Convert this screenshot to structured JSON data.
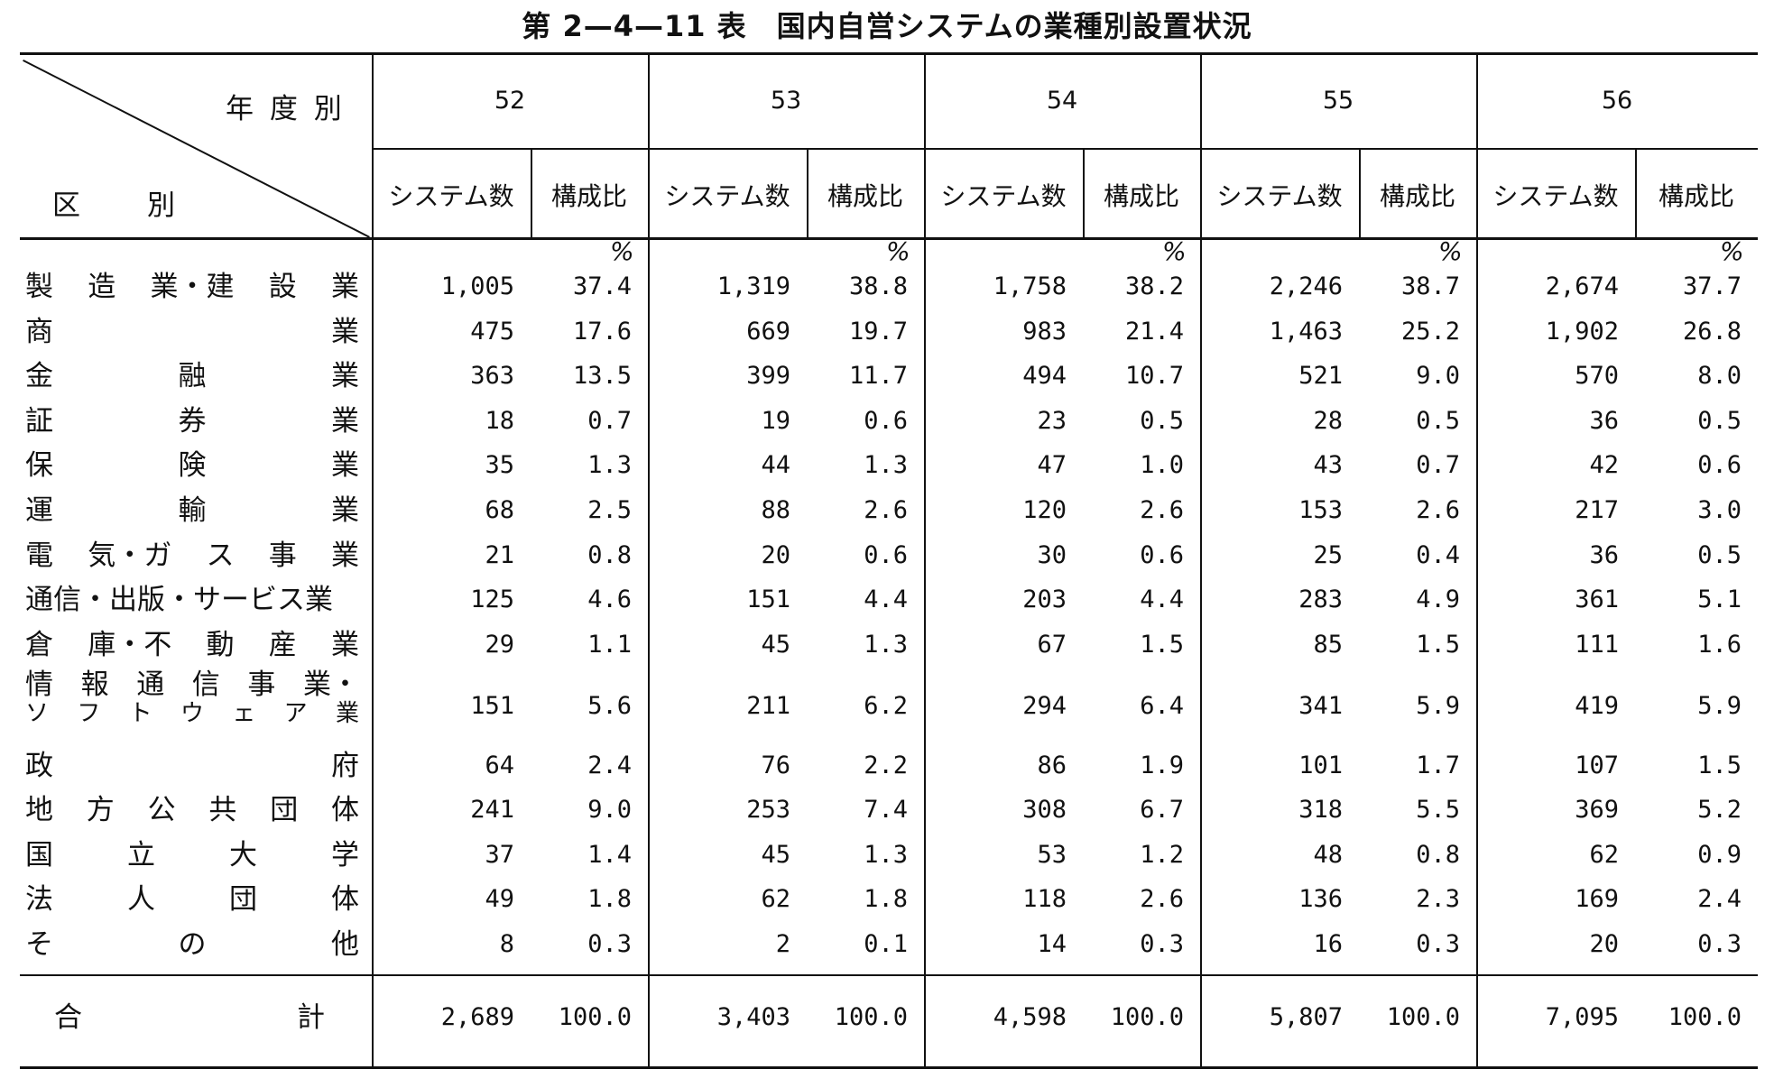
{
  "title": "第 2—4—11 表　国内自営システムの業種別設置状況",
  "header": {
    "corner_top": "年 度 別",
    "corner_bottom": "区　　別",
    "years": [
      "52",
      "53",
      "54",
      "55",
      "56"
    ],
    "col_count": "システム数",
    "col_ratio": "構成比",
    "percent_sign": "%"
  },
  "rows": [
    {
      "label": "製造業・建設業",
      "chars": [
        "製",
        "造",
        "業・建",
        "設",
        "業"
      ],
      "values": [
        "1,005",
        "37.4",
        "1,319",
        "38.8",
        "1,758",
        "38.2",
        "2,246",
        "38.7",
        "2,674",
        "37.7"
      ]
    },
    {
      "label": "商業",
      "chars": [
        "商",
        "業"
      ],
      "values": [
        "475",
        "17.6",
        "669",
        "19.7",
        "983",
        "21.4",
        "1,463",
        "25.2",
        "1,902",
        "26.8"
      ]
    },
    {
      "label": "金融業",
      "chars": [
        "金",
        "融",
        "業"
      ],
      "values": [
        "363",
        "13.5",
        "399",
        "11.7",
        "494",
        "10.7",
        "521",
        "9.0",
        "570",
        "8.0"
      ]
    },
    {
      "label": "証券業",
      "chars": [
        "証",
        "券",
        "業"
      ],
      "values": [
        "18",
        "0.7",
        "19",
        "0.6",
        "23",
        "0.5",
        "28",
        "0.5",
        "36",
        "0.5"
      ]
    },
    {
      "label": "保険業",
      "chars": [
        "保",
        "険",
        "業"
      ],
      "values": [
        "35",
        "1.3",
        "44",
        "1.3",
        "47",
        "1.0",
        "43",
        "0.7",
        "42",
        "0.6"
      ]
    },
    {
      "label": "運輸業",
      "chars": [
        "運",
        "輸",
        "業"
      ],
      "values": [
        "68",
        "2.5",
        "88",
        "2.6",
        "120",
        "2.6",
        "153",
        "2.6",
        "217",
        "3.0"
      ]
    },
    {
      "label": "電気・ガス事業",
      "chars": [
        "電",
        "気・ガ",
        "ス",
        "事",
        "業"
      ],
      "values": [
        "21",
        "0.8",
        "20",
        "0.6",
        "30",
        "0.6",
        "25",
        "0.4",
        "36",
        "0.5"
      ]
    },
    {
      "label": "通信・出版・サービス業",
      "chars": [
        "通信・出版・サービス業"
      ],
      "values": [
        "125",
        "4.6",
        "151",
        "4.4",
        "203",
        "4.4",
        "283",
        "4.9",
        "361",
        "5.1"
      ]
    },
    {
      "label": "倉庫・不動産業",
      "chars": [
        "倉",
        "庫・不",
        "動",
        "産",
        "業"
      ],
      "values": [
        "29",
        "1.1",
        "45",
        "1.3",
        "67",
        "1.5",
        "85",
        "1.5",
        "111",
        "1.6"
      ]
    },
    {
      "label": "情報通信事業・ソフトウェア業",
      "chars_top": [
        "情",
        "報",
        "通",
        "信",
        "事",
        "業・"
      ],
      "chars_bottom": [
        "ソ",
        "フ",
        "ト",
        "ウ",
        "ェ",
        "ア",
        "業"
      ],
      "values": [
        "151",
        "5.6",
        "211",
        "6.2",
        "294",
        "6.4",
        "341",
        "5.9",
        "419",
        "5.9"
      ]
    },
    {
      "label": "政府",
      "chars": [
        "政",
        "府"
      ],
      "values": [
        "64",
        "2.4",
        "76",
        "2.2",
        "86",
        "1.9",
        "101",
        "1.7",
        "107",
        "1.5"
      ]
    },
    {
      "label": "地方公共団体",
      "chars": [
        "地",
        "方",
        "公",
        "共",
        "団",
        "体"
      ],
      "values": [
        "241",
        "9.0",
        "253",
        "7.4",
        "308",
        "6.7",
        "318",
        "5.5",
        "369",
        "5.2"
      ]
    },
    {
      "label": "国立大学",
      "chars": [
        "国",
        "立",
        "大",
        "学"
      ],
      "values": [
        "37",
        "1.4",
        "45",
        "1.3",
        "53",
        "1.2",
        "48",
        "0.8",
        "62",
        "0.9"
      ]
    },
    {
      "label": "法人団体",
      "chars": [
        "法",
        "人",
        "団",
        "体"
      ],
      "values": [
        "49",
        "1.8",
        "62",
        "1.8",
        "118",
        "2.6",
        "136",
        "2.3",
        "169",
        "2.4"
      ]
    },
    {
      "label": "その他",
      "chars": [
        "そ",
        "の",
        "他"
      ],
      "values": [
        "8",
        "0.3",
        "2",
        "0.1",
        "14",
        "0.3",
        "16",
        "0.3",
        "20",
        "0.3"
      ]
    }
  ],
  "total": {
    "chars": [
      "合",
      "計"
    ],
    "values": [
      "2,689",
      "100.0",
      "3,403",
      "100.0",
      "4,598",
      "100.0",
      "5,807",
      "100.0",
      "7,095",
      "100.0"
    ]
  }
}
